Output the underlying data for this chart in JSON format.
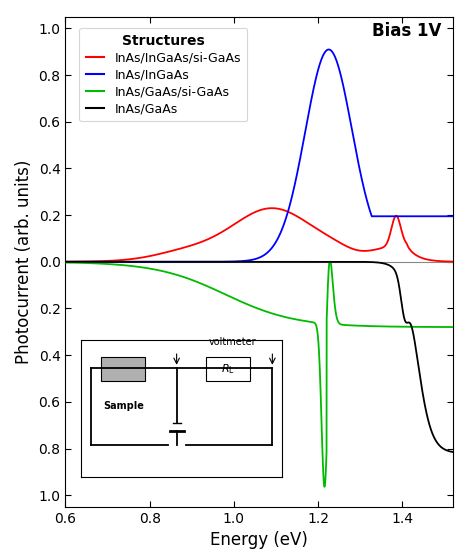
{
  "title_bias": "Bias 1V",
  "legend_title": "Structures",
  "legend_entries": [
    "InAs/InGaAs/si-GaAs",
    "InAs/InGaAs",
    "InAs/GaAs/si-GaAs",
    "InAs/GaAs"
  ],
  "line_colors": [
    "#ff0000",
    "#0000ff",
    "#00bb00",
    "#000000"
  ],
  "xlabel": "Energy (eV)",
  "ylabel": "Photocurrent (arb. units)",
  "xlim": [
    0.6,
    1.52
  ],
  "ylim": [
    -1.05,
    1.05
  ],
  "yticks": [
    1.0,
    0.8,
    0.6,
    0.4,
    0.2,
    0.0,
    -0.2,
    -0.4,
    -0.6,
    -0.8,
    -1.0
  ],
  "yticklabels": [
    "1.0",
    "0.8",
    "0.6",
    "0.4",
    "0.2",
    "0.0",
    "0.2",
    "0.4",
    "0.6",
    "0.8",
    "1.0"
  ],
  "xticks": [
    0.6,
    0.8,
    1.0,
    1.2,
    1.4
  ],
  "background_color": "#ffffff",
  "fontsize_label": 12,
  "fontsize_tick": 10,
  "fontsize_legend": 9,
  "fontsize_bias": 12
}
